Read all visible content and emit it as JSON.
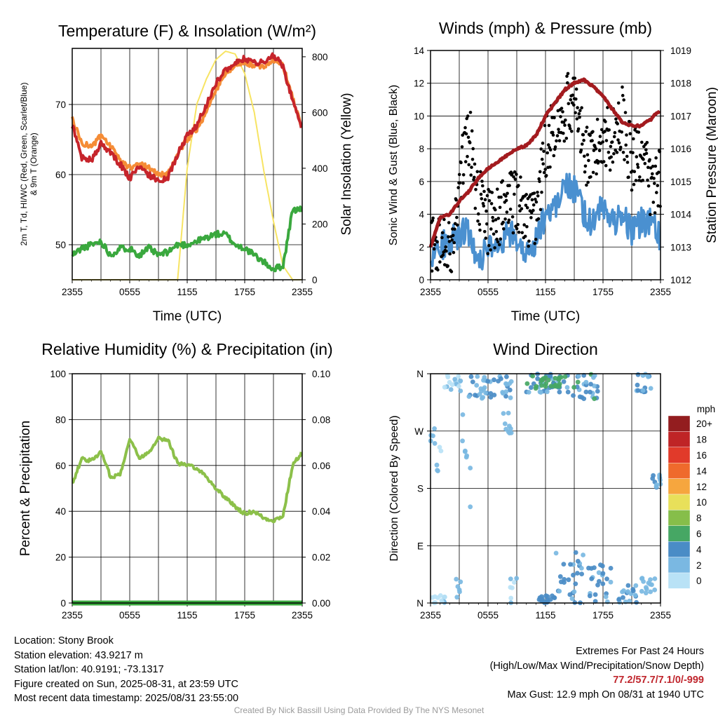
{
  "chart_data": [
    {
      "type": "line",
      "title": "Temperature (F) & Insolation (W/m²)",
      "xlabel": "Time (UTC)",
      "ylabel": "2m T, Td, HI/WC (Red, Green, Scarlet/Blue) & 9m T (Orange)",
      "ylabel_right": "Solar Insolation (Yellow)",
      "x_ticks": [
        "2355",
        "0555",
        "1155",
        "1755",
        "2355"
      ],
      "ylim": [
        45,
        78
      ],
      "y_ticks": [
        50,
        60,
        70
      ],
      "ylim_right": [
        0,
        830
      ],
      "y_ticks_right": [
        0,
        200,
        400,
        600,
        800
      ],
      "grid": true,
      "hours": [
        0,
        1,
        2,
        3,
        4,
        5,
        6,
        7,
        8,
        9,
        10,
        11,
        12,
        13,
        14,
        15,
        16,
        17,
        18,
        19,
        20,
        21,
        22,
        23,
        24
      ],
      "series": [
        {
          "key": "t9m",
          "color": "#f58c36",
          "values": [
            68.0,
            64.5,
            64.0,
            65.5,
            64.0,
            62.0,
            61.0,
            61.5,
            61.0,
            60.0,
            60.0,
            63.0,
            65.0,
            66.5,
            69.0,
            72.0,
            74.5,
            75.5,
            76.0,
            75.5,
            75.5,
            76.5,
            75.5,
            71.0,
            66.5
          ]
        },
        {
          "key": "t2m",
          "color": "#c6242b",
          "values": [
            67.0,
            62.5,
            62.0,
            64.5,
            63.0,
            61.5,
            59.5,
            61.0,
            60.0,
            59.0,
            59.5,
            63.0,
            65.5,
            67.0,
            70.0,
            73.0,
            75.0,
            76.0,
            76.5,
            76.0,
            76.0,
            77.0,
            75.5,
            70.5,
            66.5
          ]
        },
        {
          "key": "td2m",
          "color": "#3aa83e",
          "values": [
            48.5,
            49.5,
            50.0,
            50.5,
            48.5,
            49.5,
            49.5,
            48.5,
            49.5,
            48.5,
            49.0,
            50.0,
            50.0,
            50.5,
            51.0,
            51.5,
            51.5,
            50.0,
            49.5,
            48.5,
            47.5,
            46.5,
            47.0,
            55.0,
            55.0
          ]
        },
        {
          "key": "solar",
          "color": "#f7e463",
          "values": [
            0,
            0,
            0,
            0,
            0,
            0,
            0,
            0,
            0,
            0,
            0,
            0,
            400,
            630,
            720,
            790,
            820,
            810,
            740,
            600,
            390,
            210,
            50,
            0,
            0
          ]
        }
      ]
    },
    {
      "type": "line",
      "title": "Winds (mph) & Pressure (mb)",
      "xlabel": "Time (UTC)",
      "ylabel": "Sonic Wind & Gust (Blue, Black)",
      "ylabel_right": "Station Pressure (Maroon)",
      "x_ticks": [
        "2355",
        "0555",
        "1155",
        "1755",
        "2355"
      ],
      "ylim": [
        0,
        14
      ],
      "y_ticks": [
        0,
        2,
        4,
        6,
        8,
        10,
        12,
        14
      ],
      "ylim_right": [
        1012,
        1019
      ],
      "y_ticks_right": [
        1012,
        1013,
        1014,
        1015,
        1016,
        1017,
        1018,
        1019
      ],
      "grid": true,
      "hours": [
        0,
        1,
        2,
        3,
        4,
        5,
        6,
        7,
        8,
        9,
        10,
        11,
        12,
        13,
        14,
        15,
        16,
        17,
        18,
        19,
        20,
        21,
        22,
        23,
        24
      ],
      "series": [
        {
          "key": "wind",
          "color": "#4a90d0",
          "values": [
            1.5,
            2.0,
            2.5,
            2.8,
            3.0,
            1.2,
            2.0,
            1.5,
            2.8,
            2.5,
            1.5,
            2.5,
            4.0,
            4.5,
            6.0,
            5.5,
            4.0,
            3.5,
            4.5,
            3.5,
            4.0,
            3.0,
            3.5,
            3.5,
            2.5
          ]
        },
        {
          "key": "gust",
          "color": "#000000",
          "values": [
            2.5,
            2.0,
            1.5,
            6.0,
            9.0,
            5.0,
            3.5,
            4.0,
            4.5,
            5.0,
            3.5,
            4.0,
            8.0,
            9.5,
            10.5,
            11.0,
            8.0,
            7.0,
            9.0,
            8.5,
            10.0,
            7.0,
            8.0,
            5.5,
            6.5
          ]
        },
        {
          "key": "pressure",
          "color": "#a31b1f",
          "values": [
            1013.0,
            1013.9,
            1014.0,
            1014.4,
            1014.7,
            1015.1,
            1015.4,
            1015.6,
            1015.8,
            1016.0,
            1016.1,
            1016.4,
            1017.0,
            1017.4,
            1017.8,
            1018.0,
            1018.1,
            1017.9,
            1017.6,
            1017.2,
            1016.8,
            1016.7,
            1016.7,
            1016.9,
            1017.2
          ]
        }
      ]
    },
    {
      "type": "line",
      "title": "Relative Humidity (%) & Precipitation (in)",
      "xlabel": "",
      "ylabel": "Percent & Precipitation",
      "x_ticks": [
        "2355",
        "0555",
        "1155",
        "1755",
        "2355"
      ],
      "ylim": [
        0,
        100
      ],
      "y_ticks": [
        0,
        20,
        40,
        60,
        80,
        100
      ],
      "ylim_right": [
        0,
        0.1
      ],
      "y_ticks_right": [
        "0.00",
        "0.02",
        "0.04",
        "0.06",
        "0.08",
        "0.10"
      ],
      "grid": true,
      "hours": [
        0,
        1,
        2,
        3,
        4,
        5,
        6,
        7,
        8,
        9,
        10,
        11,
        12,
        13,
        14,
        15,
        16,
        17,
        18,
        19,
        20,
        21,
        22,
        23,
        24
      ],
      "series": [
        {
          "key": "rh",
          "color": "#8cc04a",
          "values": [
            52,
            63,
            62,
            66,
            55,
            56,
            72,
            63,
            66,
            72,
            71,
            61,
            60,
            59,
            55,
            50,
            46,
            42,
            39,
            40,
            37,
            36,
            38,
            60,
            66
          ]
        },
        {
          "key": "precip",
          "color": "#3aa83e",
          "values": [
            0,
            0,
            0,
            0,
            0,
            0,
            0,
            0,
            0,
            0,
            0,
            0,
            0,
            0,
            0,
            0,
            0,
            0,
            0,
            0,
            0,
            0,
            0,
            0,
            0
          ]
        }
      ]
    },
    {
      "type": "scatter",
      "title": "Wind Direction",
      "xlabel": "",
      "ylabel": "Direction (Colored By Speed)",
      "x_ticks": [
        "2355",
        "0555",
        "1155",
        "1755",
        "2355"
      ],
      "y_ticks": [
        "N",
        "E",
        "S",
        "W",
        "N"
      ],
      "ylim": [
        0,
        360
      ],
      "grid": true,
      "colorbar_title": "mph",
      "colorbar_labels": [
        "0",
        "2",
        "4",
        "6",
        "8",
        "10",
        "12",
        "14",
        "16",
        "18",
        "20+"
      ],
      "colorbar_colors": [
        "#b9e2f6",
        "#7ab8e2",
        "#4a8cc6",
        "#46a764",
        "#86be4a",
        "#e8e05a",
        "#f6a63e",
        "#ef6a2c",
        "#e13a2a",
        "#bf2426",
        "#931d1f"
      ]
    }
  ],
  "footer": {
    "location": "Location: Stony Brook",
    "elevation": "Station elevation: 43.9217 m",
    "latlon": "Station lat/lon: 40.9191; -73.1317",
    "created": "Figure created on Sun, 2025-08-31, at 23:59 UTC",
    "recent": "Most recent data timestamp: 2025/08/31 23:55:00",
    "extremes_title": "Extremes For Past 24 Hours",
    "extremes_fields": "(High/Low/Max Wind/Precipitation/Snow Depth)",
    "extremes_values": "77.2/57.7/7.1/0/-999",
    "max_gust": "Max Gust: 12.9 mph On 08/31 at 1940 UTC",
    "credit": "Created By Nick Bassill Using Data Provided By The NYS Mesonet"
  }
}
